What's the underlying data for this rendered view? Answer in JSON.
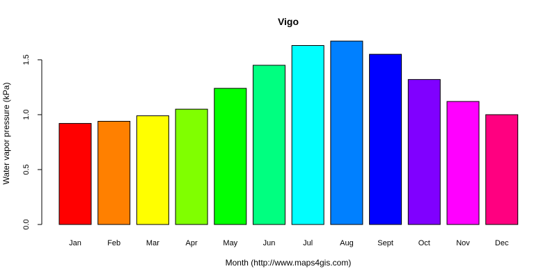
{
  "chart_data": {
    "type": "bar",
    "title": "Vigo",
    "xlabel": "Month (http://www.maps4gis.com)",
    "ylabel": "Water vapor pressure (kPa)",
    "categories": [
      "Jan",
      "Feb",
      "Mar",
      "Apr",
      "May",
      "Jun",
      "Jul",
      "Aug",
      "Sept",
      "Oct",
      "Nov",
      "Dec"
    ],
    "values": [
      0.92,
      0.94,
      0.99,
      1.05,
      1.24,
      1.45,
      1.63,
      1.67,
      1.55,
      1.32,
      1.12,
      1.0
    ],
    "colors": [
      "#FF0000",
      "#FF8000",
      "#FFFF00",
      "#80FF00",
      "#00FF00",
      "#00FF80",
      "#00FFFF",
      "#0080FF",
      "#0000FF",
      "#8000FF",
      "#FF00FF",
      "#FF0080"
    ],
    "yticks": [
      "0.0",
      "0.5",
      "1.0",
      "1.5"
    ],
    "ylim": [
      0,
      1.75
    ],
    "grid": false,
    "legend": "none"
  }
}
